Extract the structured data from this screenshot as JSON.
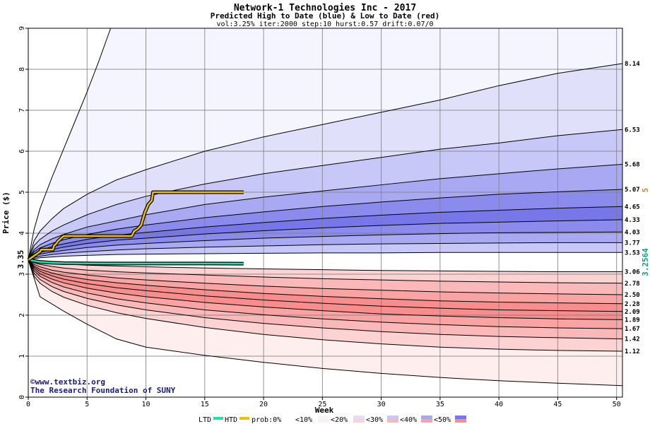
{
  "header": {
    "title": "Network-1 Technologies Inc - 2017",
    "subtitle": "Predicted High to Date (blue) &  Low to Date (red)",
    "params": "vol:3.25% iter:2000 step:10 hurst:0.57 drift:0.07/0"
  },
  "credits": {
    "line1": "©www.textbiz.org",
    "line2": "The Research Foundation of SUNY"
  },
  "legend": {
    "ltd": "LTD",
    "htd": "HTD",
    "prob": "prob:0%",
    "lt10": "<10%",
    "lt20": "<20%",
    "lt30": "<30%",
    "lt40": "<40%",
    "lt50": "<50%"
  },
  "colors": {
    "blue_bands": [
      "#f5f5ff",
      "#e0e0fb",
      "#c8c8f8",
      "#a9a9f3",
      "#8b8bee",
      "#7777ea"
    ],
    "red_bands": [
      "#ffeeee",
      "#fdd2d2",
      "#fbb8b8",
      "#f9a3a3",
      "#f78d8d"
    ],
    "htd_line": "#f0c000",
    "ltd_line": "#20e0b0",
    "start_label": "#000000",
    "high_marker": "#c09020",
    "low_marker": "#10a080"
  },
  "chart_data": {
    "type": "area",
    "xlabel": "Week",
    "ylabel": "Price ($)",
    "xlim": [
      0,
      50.5
    ],
    "ylim": [
      0,
      9
    ],
    "x_ticks": [
      0,
      5,
      10,
      15,
      20,
      25,
      30,
      35,
      40,
      45,
      50
    ],
    "y_ticks": [
      0,
      1,
      2,
      3,
      4,
      5,
      6,
      7,
      8,
      9
    ],
    "grid": true,
    "start_value": 3.35,
    "start_label": "3.35",
    "high_marker_label": "5",
    "low_marker_label": "3.2564",
    "x": [
      0,
      0.5,
      1,
      2,
      3,
      5,
      7.5,
      10,
      15,
      20,
      25,
      30,
      35,
      40,
      45,
      50.5
    ],
    "high_quantiles": [
      {
        "name": "q-upper-1",
        "end_label": "8.14",
        "values": [
          3.35,
          3.82,
          4.05,
          4.35,
          4.6,
          4.95,
          5.3,
          5.55,
          6.0,
          6.35,
          6.65,
          6.95,
          7.25,
          7.6,
          7.9,
          8.14
        ]
      },
      {
        "name": "q-upper-2",
        "end_label": "6.53",
        "values": [
          3.35,
          3.7,
          3.85,
          4.05,
          4.2,
          4.45,
          4.7,
          4.9,
          5.2,
          5.45,
          5.65,
          5.85,
          6.05,
          6.2,
          6.38,
          6.53
        ]
      },
      {
        "name": "q-upper-3",
        "end_label": "5.68",
        "values": [
          3.35,
          3.6,
          3.72,
          3.86,
          3.97,
          4.15,
          4.3,
          4.45,
          4.7,
          4.88,
          5.03,
          5.18,
          5.33,
          5.45,
          5.57,
          5.68
        ]
      },
      {
        "name": "q-upper-4",
        "end_label": "5.07",
        "values": [
          3.35,
          3.55,
          3.64,
          3.75,
          3.84,
          3.97,
          4.1,
          4.2,
          4.38,
          4.52,
          4.65,
          4.76,
          4.86,
          4.95,
          5.01,
          5.07
        ]
      },
      {
        "name": "q-upper-5",
        "end_label": "4.65",
        "values": [
          3.35,
          3.5,
          3.58,
          3.67,
          3.74,
          3.85,
          3.95,
          4.02,
          4.15,
          4.26,
          4.36,
          4.44,
          4.51,
          4.56,
          4.61,
          4.65
        ]
      },
      {
        "name": "q-upper-6",
        "end_label": "4.33",
        "values": [
          3.35,
          3.47,
          3.53,
          3.6,
          3.66,
          3.75,
          3.83,
          3.88,
          3.98,
          4.06,
          4.13,
          4.19,
          4.24,
          4.27,
          4.3,
          4.33
        ]
      },
      {
        "name": "q-upper-7",
        "end_label": "4.03",
        "values": [
          3.35,
          3.44,
          3.49,
          3.54,
          3.58,
          3.65,
          3.71,
          3.75,
          3.82,
          3.88,
          3.92,
          3.96,
          3.99,
          4.01,
          4.02,
          4.03
        ]
      },
      {
        "name": "q-upper-8",
        "end_label": "3.77",
        "values": [
          3.35,
          3.41,
          3.44,
          3.48,
          3.51,
          3.55,
          3.59,
          3.62,
          3.66,
          3.69,
          3.72,
          3.74,
          3.75,
          3.76,
          3.77,
          3.77
        ]
      },
      {
        "name": "q-upper-9",
        "end_label": "3.53",
        "values": [
          3.35,
          3.38,
          3.4,
          3.42,
          3.44,
          3.46,
          3.48,
          3.49,
          3.5,
          3.51,
          3.52,
          3.52,
          3.53,
          3.53,
          3.53,
          3.53
        ]
      }
    ],
    "low_quantiles": [
      {
        "name": "q-lower-1",
        "end_label": "3.06",
        "values": [
          3.35,
          3.32,
          3.3,
          3.27,
          3.25,
          3.22,
          3.2,
          3.18,
          3.15,
          3.13,
          3.11,
          3.09,
          3.08,
          3.07,
          3.06,
          3.06
        ]
      },
      {
        "name": "q-lower-2",
        "end_label": "2.78",
        "values": [
          3.35,
          3.28,
          3.24,
          3.19,
          3.15,
          3.1,
          3.06,
          3.03,
          2.98,
          2.93,
          2.89,
          2.86,
          2.83,
          2.81,
          2.79,
          2.78
        ]
      },
      {
        "name": "q-lower-3",
        "end_label": "2.50",
        "values": [
          3.35,
          3.24,
          3.18,
          3.1,
          3.05,
          2.98,
          2.91,
          2.86,
          2.78,
          2.71,
          2.65,
          2.61,
          2.57,
          2.54,
          2.52,
          2.5
        ]
      },
      {
        "name": "q-lower-4",
        "end_label": "2.28",
        "values": [
          3.35,
          3.2,
          3.12,
          3.03,
          2.96,
          2.87,
          2.79,
          2.73,
          2.62,
          2.53,
          2.46,
          2.4,
          2.35,
          2.32,
          2.3,
          2.28
        ]
      },
      {
        "name": "q-lower-5",
        "end_label": "2.09",
        "values": [
          3.35,
          3.17,
          3.07,
          2.96,
          2.88,
          2.77,
          2.67,
          2.6,
          2.47,
          2.37,
          2.29,
          2.22,
          2.17,
          2.13,
          2.11,
          2.09
        ]
      },
      {
        "name": "q-lower-6",
        "end_label": "1.89",
        "values": [
          3.35,
          3.13,
          3.01,
          2.88,
          2.79,
          2.66,
          2.54,
          2.45,
          2.31,
          2.2,
          2.11,
          2.03,
          1.98,
          1.94,
          1.91,
          1.89
        ]
      },
      {
        "name": "q-lower-7",
        "end_label": "1.67",
        "values": [
          3.35,
          3.08,
          2.95,
          2.8,
          2.69,
          2.54,
          2.4,
          2.3,
          2.13,
          2.01,
          1.91,
          1.83,
          1.77,
          1.72,
          1.69,
          1.67
        ]
      },
      {
        "name": "q-lower-8",
        "end_label": "1.42",
        "values": [
          3.35,
          3.02,
          2.87,
          2.7,
          2.58,
          2.41,
          2.25,
          2.13,
          1.94,
          1.8,
          1.69,
          1.6,
          1.53,
          1.48,
          1.45,
          1.42
        ]
      },
      {
        "name": "q-lower-9",
        "end_label": "1.12",
        "values": [
          3.35,
          2.95,
          2.78,
          2.58,
          2.44,
          2.24,
          2.06,
          1.92,
          1.7,
          1.53,
          1.4,
          1.3,
          1.22,
          1.17,
          1.14,
          1.12
        ]
      }
    ],
    "outer_upper": {
      "x": [
        0,
        0.5,
        1,
        2,
        3,
        4,
        5,
        6,
        7
      ],
      "values": [
        3.35,
        4.1,
        4.6,
        5.35,
        6.05,
        6.75,
        7.45,
        8.2,
        9.0
      ]
    },
    "outer_lower": {
      "x": [
        0,
        1,
        3,
        5,
        7.5,
        10,
        15,
        20,
        25,
        30,
        35,
        40,
        45,
        50.5
      ],
      "values": [
        3.35,
        2.45,
        2.1,
        1.78,
        1.42,
        1.22,
        1.02,
        0.85,
        0.7,
        0.58,
        0.48,
        0.4,
        0.34,
        0.28
      ]
    },
    "htd": {
      "x": [
        0,
        0.5,
        1,
        1.1,
        2.1,
        2.2,
        2.4,
        2.5,
        3.0,
        8.8,
        9.0,
        9.3,
        9.6,
        9.9,
        10.2,
        10.5,
        10.6,
        18.3
      ],
      "values": [
        3.35,
        3.45,
        3.55,
        3.6,
        3.6,
        3.7,
        3.75,
        3.8,
        3.93,
        3.93,
        4.05,
        4.1,
        4.2,
        4.5,
        4.7,
        4.8,
        5.0,
        5.0
      ]
    },
    "ltd": {
      "x": [
        0,
        1,
        2,
        3,
        6,
        9,
        12,
        15,
        18.3
      ],
      "values": [
        3.35,
        3.3,
        3.28,
        3.27,
        3.26,
        3.26,
        3.26,
        3.26,
        3.2564
      ]
    }
  }
}
